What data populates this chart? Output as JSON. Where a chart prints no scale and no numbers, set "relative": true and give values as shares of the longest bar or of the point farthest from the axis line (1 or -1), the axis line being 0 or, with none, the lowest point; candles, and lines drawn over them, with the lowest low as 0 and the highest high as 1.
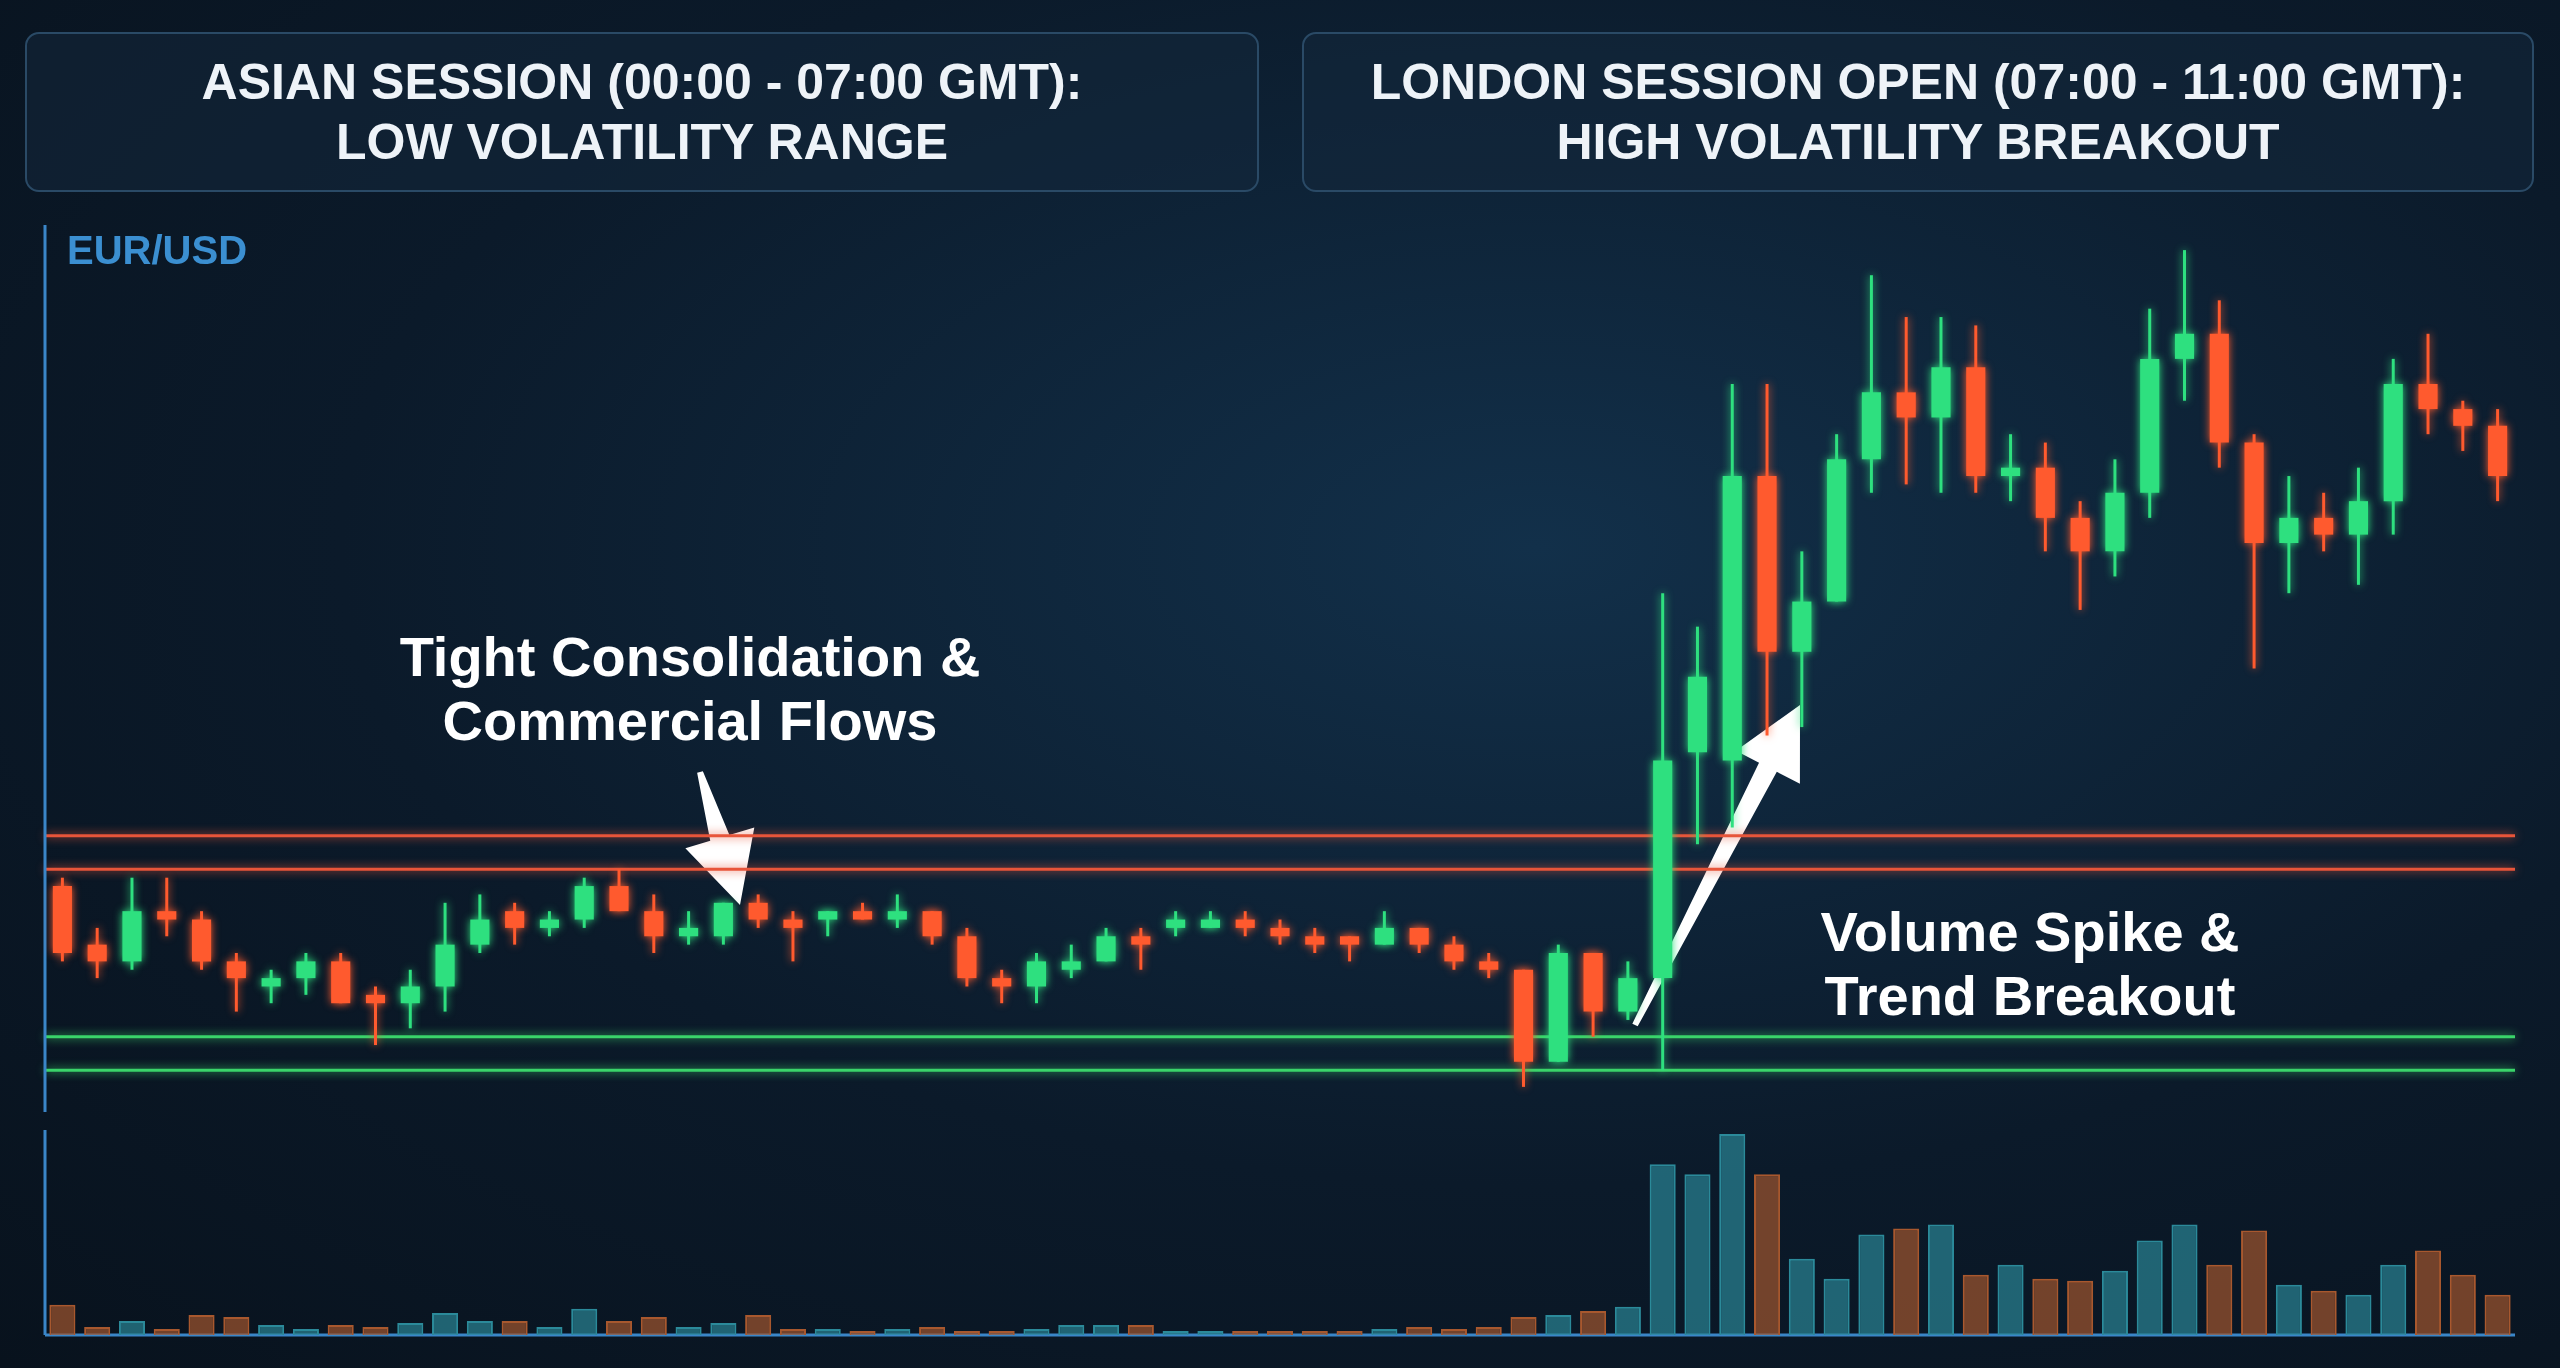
{
  "chart_data": [
    {
      "type": "candlestick",
      "relative": true,
      "title": "EUR/USD",
      "annotations": [
        "ASIAN SESSION (00:00 - 07:00 GMT):\nLOW VOLATILITY RANGE",
        "LONDON SESSION OPEN (07:00 - 11:00 GMT):\nHIGH VOLATILITY BREAKOUT",
        "Tight Consolidation & Commercial Flows",
        "Volume Spike & Trend Breakout"
      ],
      "categories": [
        null,
        null,
        null,
        null,
        null,
        null,
        null,
        null,
        null,
        null,
        null,
        null,
        null,
        null,
        null,
        null,
        null,
        null,
        null,
        null,
        null,
        null,
        null,
        null,
        null,
        null,
        null,
        null,
        null,
        null,
        null,
        null,
        null,
        null,
        null,
        null,
        null,
        null,
        null,
        null,
        null,
        null,
        null,
        null,
        null,
        null,
        null,
        null,
        null,
        null,
        null,
        null,
        null,
        null,
        null,
        null,
        null,
        null,
        null,
        null,
        null,
        null,
        null,
        null,
        null,
        null,
        null,
        null,
        null,
        null,
        null
      ],
      "ohlc": [
        [
          0.24,
          0.25,
          0.15,
          0.16
        ],
        [
          0.17,
          0.19,
          0.13,
          0.15
        ],
        [
          0.15,
          0.25,
          0.14,
          0.21
        ],
        [
          0.21,
          0.25,
          0.18,
          0.2
        ],
        [
          0.2,
          0.21,
          0.14,
          0.15
        ],
        [
          0.15,
          0.16,
          0.09,
          0.13
        ],
        [
          0.12,
          0.14,
          0.1,
          0.13
        ],
        [
          0.13,
          0.16,
          0.11,
          0.15
        ],
        [
          0.15,
          0.16,
          0.1,
          0.1
        ],
        [
          0.11,
          0.12,
          0.05,
          0.1
        ],
        [
          0.1,
          0.14,
          0.07,
          0.12
        ],
        [
          0.12,
          0.22,
          0.09,
          0.17
        ],
        [
          0.17,
          0.23,
          0.16,
          0.2
        ],
        [
          0.21,
          0.22,
          0.17,
          0.19
        ],
        [
          0.19,
          0.21,
          0.18,
          0.2
        ],
        [
          0.2,
          0.25,
          0.19,
          0.24
        ],
        [
          0.24,
          0.26,
          0.21,
          0.21
        ],
        [
          0.21,
          0.23,
          0.16,
          0.18
        ],
        [
          0.18,
          0.21,
          0.17,
          0.19
        ],
        [
          0.18,
          0.22,
          0.17,
          0.22
        ],
        [
          0.22,
          0.23,
          0.19,
          0.2
        ],
        [
          0.2,
          0.21,
          0.15,
          0.19
        ],
        [
          0.2,
          0.21,
          0.18,
          0.21
        ],
        [
          0.21,
          0.22,
          0.2,
          0.2
        ],
        [
          0.2,
          0.23,
          0.19,
          0.21
        ],
        [
          0.21,
          0.21,
          0.17,
          0.18
        ],
        [
          0.18,
          0.19,
          0.12,
          0.13
        ],
        [
          0.13,
          0.14,
          0.1,
          0.12
        ],
        [
          0.12,
          0.16,
          0.1,
          0.15
        ],
        [
          0.14,
          0.17,
          0.13,
          0.15
        ],
        [
          0.15,
          0.19,
          0.15,
          0.18
        ],
        [
          0.18,
          0.19,
          0.14,
          0.17
        ],
        [
          0.19,
          0.21,
          0.18,
          0.2
        ],
        [
          0.19,
          0.21,
          0.19,
          0.2
        ],
        [
          0.2,
          0.21,
          0.18,
          0.19
        ],
        [
          0.19,
          0.2,
          0.17,
          0.18
        ],
        [
          0.18,
          0.19,
          0.16,
          0.17
        ],
        [
          0.18,
          0.18,
          0.15,
          0.17
        ],
        [
          0.17,
          0.21,
          0.17,
          0.19
        ],
        [
          0.19,
          0.19,
          0.16,
          0.17
        ],
        [
          0.17,
          0.18,
          0.14,
          0.15
        ],
        [
          0.15,
          0.16,
          0.13,
          0.14
        ],
        [
          0.14,
          0.14,
          0,
          0.03
        ],
        [
          0.03,
          0.17,
          0.03,
          0.16
        ],
        [
          0.16,
          0.16,
          0.06,
          0.09
        ],
        [
          0.09,
          0.15,
          0.08,
          0.13
        ],
        [
          0.13,
          0.59,
          0.02,
          0.39
        ],
        [
          0.4,
          0.55,
          0.29,
          0.49
        ],
        [
          0.39,
          0.84,
          0.31,
          0.73
        ],
        [
          0.73,
          0.84,
          0.42,
          0.52
        ],
        [
          0.52,
          0.64,
          0.43,
          0.58
        ],
        [
          0.58,
          0.78,
          0.58,
          0.75
        ],
        [
          0.75,
          0.97,
          0.71,
          0.83
        ],
        [
          0.83,
          0.92,
          0.72,
          0.8
        ],
        [
          0.8,
          0.92,
          0.71,
          0.86
        ],
        [
          0.86,
          0.91,
          0.71,
          0.73
        ],
        [
          0.73,
          0.78,
          0.7,
          0.74
        ],
        [
          0.74,
          0.77,
          0.64,
          0.68
        ],
        [
          0.68,
          0.7,
          0.57,
          0.64
        ],
        [
          0.64,
          0.75,
          0.61,
          0.71
        ],
        [
          0.71,
          0.93,
          0.68,
          0.87
        ],
        [
          0.87,
          1,
          0.82,
          0.9
        ],
        [
          0.9,
          0.94,
          0.74,
          0.77
        ],
        [
          0.77,
          0.78,
          0.5,
          0.65
        ],
        [
          0.65,
          0.73,
          0.59,
          0.68
        ],
        [
          0.68,
          0.71,
          0.64,
          0.66
        ],
        [
          0.66,
          0.74,
          0.6,
          0.7
        ],
        [
          0.7,
          0.87,
          0.66,
          0.84
        ],
        [
          0.84,
          0.9,
          0.78,
          0.81
        ],
        [
          0.81,
          0.82,
          0.76,
          0.79
        ],
        [
          0.79,
          0.81,
          0.7,
          0.73
        ]
      ],
      "ref_lines": [
        {
          "axis": "y",
          "value": 0.3,
          "color": "#e8553a"
        },
        {
          "axis": "y",
          "value": 0.26,
          "color": "#e8553a"
        },
        {
          "axis": "y",
          "value": 0.06,
          "color": "#3ad46a"
        },
        {
          "axis": "y",
          "value": 0.02,
          "color": "#3ad46a"
        }
      ]
    },
    {
      "type": "bar",
      "relative": true,
      "categories": [
        null,
        null,
        null,
        null,
        null,
        null,
        null,
        null,
        null,
        null,
        null,
        null,
        null,
        null,
        null,
        null,
        null,
        null,
        null,
        null,
        null,
        null,
        null,
        null,
        null,
        null,
        null,
        null,
        null,
        null,
        null,
        null,
        null,
        null,
        null,
        null,
        null,
        null,
        null,
        null,
        null,
        null,
        null,
        null,
        null,
        null,
        null,
        null,
        null,
        null,
        null,
        null,
        null,
        null,
        null,
        null,
        null,
        null,
        null,
        null,
        null,
        null,
        null,
        null,
        null,
        null,
        null,
        null,
        null,
        null,
        null
      ],
      "values": [
        0.15,
        0.04,
        0.07,
        0.03,
        0.1,
        0.09,
        0.05,
        0.03,
        0.05,
        0.04,
        0.06,
        0.11,
        0.07,
        0.07,
        0.04,
        0.13,
        0.07,
        0.09,
        0.04,
        0.06,
        0.1,
        0.03,
        0.03,
        0.02,
        0.03,
        0.04,
        0.02,
        0.02,
        0.03,
        0.05,
        0.05,
        0.05,
        0.02,
        0.02,
        0.02,
        0.02,
        0.02,
        0.02,
        0.03,
        0.04,
        0.03,
        0.04,
        0.09,
        0.1,
        0.12,
        0.14,
        0.85,
        0.8,
        1,
        0.8,
        0.38,
        0.28,
        0.5,
        0.53,
        0.55,
        0.3,
        0.35,
        0.28,
        0.27,
        0.32,
        0.47,
        0.55,
        0.35,
        0.52,
        0.25,
        0.22,
        0.2,
        0.35,
        0.42,
        0.3,
        0.2
      ],
      "colors": [
        "#a8582e",
        "#a8582e",
        "#2b8a9a",
        "#a8582e",
        "#a8582e",
        "#a8582e",
        "#2b8a9a",
        "#2b8a9a",
        "#a8582e",
        "#a8582e",
        "#2b8a9a",
        "#2b8a9a",
        "#2b8a9a",
        "#a8582e",
        "#2b8a9a",
        "#2b8a9a",
        "#a8582e",
        "#a8582e",
        "#2b8a9a",
        "#2b8a9a",
        "#a8582e",
        "#a8582e",
        "#2b8a9a",
        "#a8582e",
        "#2b8a9a",
        "#a8582e",
        "#a8582e",
        "#a8582e",
        "#2b8a9a",
        "#2b8a9a",
        "#2b8a9a",
        "#a8582e",
        "#2b8a9a",
        "#2b8a9a",
        "#a8582e",
        "#a8582e",
        "#a8582e",
        "#a8582e",
        "#2b8a9a",
        "#a8582e",
        "#a8582e",
        "#a8582e",
        "#a8582e",
        "#2b8a9a",
        "#a8582e",
        "#2b8a9a",
        "#2b8a9a",
        "#2b8a9a",
        "#2b8a9a",
        "#a8582e",
        "#2b8a9a",
        "#2b8a9a",
        "#2b8a9a",
        "#a8582e",
        "#2b8a9a",
        "#a8582e",
        "#2b8a9a",
        "#a8582e",
        "#a8582e",
        "#2b8a9a",
        "#2b8a9a",
        "#2b8a9a",
        "#a8582e",
        "#a8582e",
        "#2b8a9a",
        "#a8582e",
        "#2b8a9a",
        "#2b8a9a",
        "#a8582e",
        "#a8582e",
        "#a8582e"
      ]
    }
  ]
}
